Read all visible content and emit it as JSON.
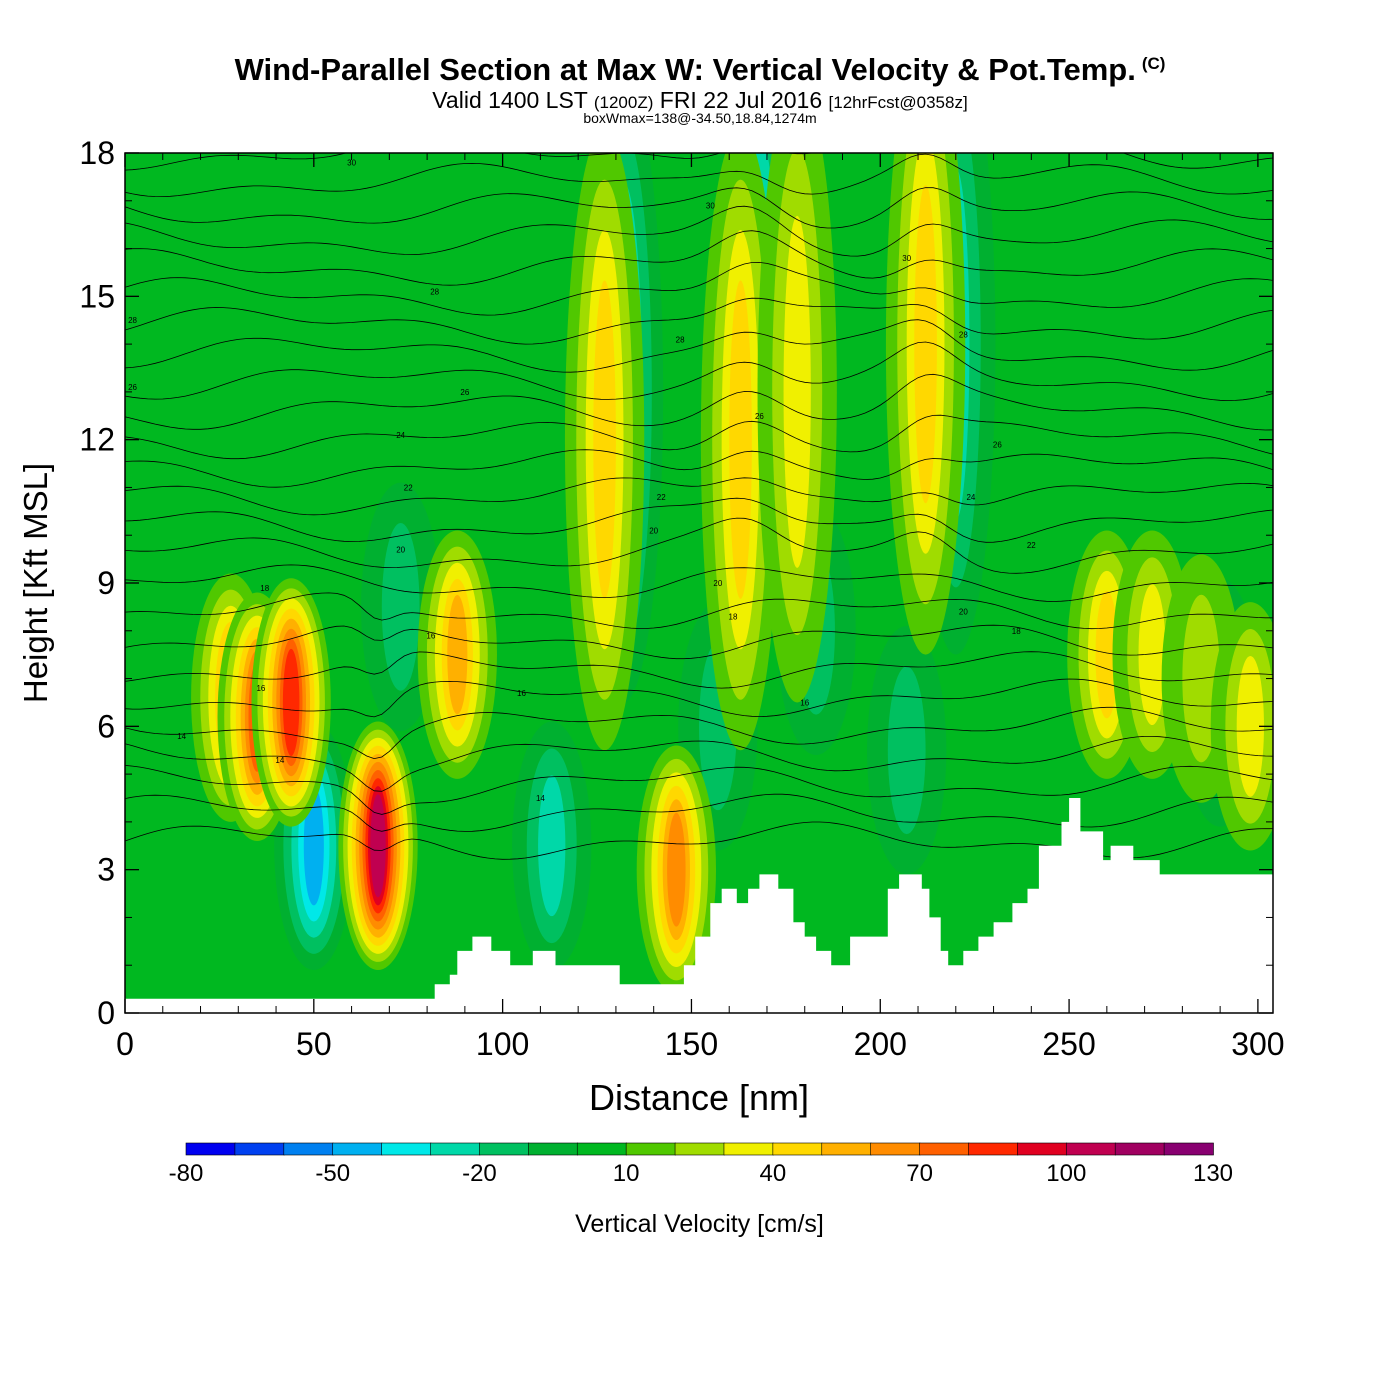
{
  "title": {
    "main": "Wind-Parallel Section at Max W: Vertical Velocity & Pot.Temp.",
    "copyright": "(C)",
    "valid_prefix": "Valid 1400 LST",
    "valid_z": "(1200Z)",
    "valid_date": "FRI 22 Jul 2016",
    "forecast": "[12hrFcst@0358z]",
    "box": "boxWmax=138@-34.50,18.84,1274m"
  },
  "chart_data": {
    "type": "heatmap",
    "xlabel": "Distance [nm]",
    "ylabel": "Height [Kft MSL]",
    "xlim": [
      0,
      304
    ],
    "ylim": [
      0,
      18
    ],
    "xticks": [
      "0",
      "50",
      "100",
      "150",
      "200",
      "250",
      "300"
    ],
    "yticks": [
      "0",
      "3",
      "6",
      "9",
      "12",
      "15",
      "18"
    ],
    "colorbar": {
      "label": "Vertical Velocity [cm/s]",
      "range": [
        -80,
        130
      ],
      "step": 10,
      "tick_labels": [
        "-80",
        "-50",
        "-20",
        "10",
        "40",
        "70",
        "100",
        "130"
      ],
      "colors": [
        "#0000f0",
        "#0040f0",
        "#0080f0",
        "#00b0f0",
        "#00e8e8",
        "#00d8a8",
        "#00c060",
        "#00b030",
        "#00b820",
        "#50c800",
        "#a0dc00",
        "#f0f000",
        "#ffd800",
        "#ffb000",
        "#ff8c00",
        "#ff6000",
        "#ff2800",
        "#e00020",
        "#c00050",
        "#a00060",
        "#880070"
      ]
    },
    "background_value": 5,
    "updrafts": [
      {
        "x": 28,
        "y_kft": 6.6,
        "peak_cm_s": 55
      },
      {
        "x": 35,
        "y_kft": 6.2,
        "peak_cm_s": 80
      },
      {
        "x": 44,
        "y_kft": 6.5,
        "peak_cm_s": 85
      },
      {
        "x": 67,
        "y_kft": 3.5,
        "peak_cm_s": 110
      },
      {
        "x": 88,
        "y_kft": 7.5,
        "peak_cm_s": 60
      },
      {
        "x": 146,
        "y_kft": 3.0,
        "peak_cm_s": 65
      },
      {
        "x": 127,
        "y_kft": 12,
        "peak_cm_s": 45
      },
      {
        "x": 163,
        "y_kft": 12,
        "peak_cm_s": 45
      },
      {
        "x": 178,
        "y_kft": 13,
        "peak_cm_s": 35
      },
      {
        "x": 212,
        "y_kft": 14,
        "peak_cm_s": 45
      },
      {
        "x": 260,
        "y_kft": 7.5,
        "peak_cm_s": 45
      },
      {
        "x": 272,
        "y_kft": 7.5,
        "peak_cm_s": 40
      },
      {
        "x": 285,
        "y_kft": 7,
        "peak_cm_s": 25
      },
      {
        "x": 298,
        "y_kft": 6,
        "peak_cm_s": 35
      }
    ],
    "downdrafts": [
      {
        "x": 50,
        "y_kft": 3.5,
        "peak_cm_s": -45
      },
      {
        "x": 73,
        "y_kft": 8.5,
        "peak_cm_s": -20
      },
      {
        "x": 113,
        "y_kft": 3.5,
        "peak_cm_s": -25
      },
      {
        "x": 132,
        "y_kft": 13,
        "peak_cm_s": -35
      },
      {
        "x": 168,
        "y_kft": 14,
        "peak_cm_s": -35
      },
      {
        "x": 207,
        "y_kft": 5.5,
        "peak_cm_s": -20
      },
      {
        "x": 220,
        "y_kft": 14,
        "peak_cm_s": -25
      },
      {
        "x": 157,
        "y_kft": 6,
        "peak_cm_s": -15
      },
      {
        "x": 183,
        "y_kft": 8,
        "peak_cm_s": -15
      },
      {
        "x": 290,
        "y_kft": 6.5,
        "peak_cm_s": -15
      }
    ],
    "terrain": {
      "x": [
        0,
        82,
        82,
        86,
        86,
        88,
        88,
        92,
        92,
        97,
        97,
        102,
        102,
        108,
        108,
        114,
        114,
        131,
        131,
        148,
        148,
        151,
        151,
        155,
        155,
        158,
        158,
        162,
        162,
        165,
        165,
        168,
        168,
        173,
        173,
        177,
        177,
        180,
        180,
        183,
        183,
        187,
        187,
        192,
        192,
        202,
        202,
        205,
        205,
        211,
        211,
        213,
        213,
        216,
        216,
        218,
        218,
        222,
        222,
        226,
        226,
        230,
        230,
        235,
        235,
        239,
        239,
        242,
        242,
        248,
        248,
        250,
        250,
        253,
        253,
        259,
        259,
        261,
        261,
        267,
        267,
        274,
        274,
        276,
        276,
        304
      ],
      "h_kft": [
        0.3,
        0.3,
        0.6,
        0.6,
        0.8,
        0.8,
        1.3,
        1.3,
        1.6,
        1.6,
        1.3,
        1.3,
        1.0,
        1.0,
        1.3,
        1.3,
        1.0,
        1.0,
        0.6,
        0.6,
        1.0,
        1.0,
        1.6,
        1.6,
        2.3,
        2.3,
        2.6,
        2.6,
        2.3,
        2.3,
        2.6,
        2.6,
        2.9,
        2.9,
        2.6,
        2.6,
        1.9,
        1.9,
        1.6,
        1.6,
        1.3,
        1.3,
        1.0,
        1.0,
        1.6,
        1.6,
        2.6,
        2.6,
        2.9,
        2.9,
        2.6,
        2.6,
        2.0,
        2.0,
        1.3,
        1.3,
        1.0,
        1.0,
        1.3,
        1.3,
        1.6,
        1.6,
        1.9,
        1.9,
        2.3,
        2.3,
        2.6,
        2.6,
        3.5,
        3.5,
        4.0,
        4.0,
        4.5,
        4.5,
        3.8,
        3.8,
        3.2,
        3.2,
        3.5,
        3.5,
        3.2,
        3.2,
        2.9,
        2.9,
        2.9,
        2.9
      ]
    },
    "isentrope_labels": [
      {
        "x": 15,
        "y_kft": 5.8,
        "label": "14"
      },
      {
        "x": 36,
        "y_kft": 6.8,
        "label": "16"
      },
      {
        "x": 37,
        "y_kft": 8.9,
        "label": "18"
      },
      {
        "x": 41,
        "y_kft": 5.3,
        "label": "14"
      },
      {
        "x": 81,
        "y_kft": 7.9,
        "label": "16"
      },
      {
        "x": 73,
        "y_kft": 9.7,
        "label": "20"
      },
      {
        "x": 75,
        "y_kft": 11.0,
        "label": "22"
      },
      {
        "x": 73,
        "y_kft": 12.1,
        "label": "24"
      },
      {
        "x": 90,
        "y_kft": 13.0,
        "label": "26"
      },
      {
        "x": 82,
        "y_kft": 15.1,
        "label": "28"
      },
      {
        "x": 2,
        "y_kft": 14.5,
        "label": "28"
      },
      {
        "x": 2,
        "y_kft": 13.1,
        "label": "26"
      },
      {
        "x": 60,
        "y_kft": 17.8,
        "label": "30"
      },
      {
        "x": 105,
        "y_kft": 6.7,
        "label": "16"
      },
      {
        "x": 110,
        "y_kft": 4.5,
        "label": "14"
      },
      {
        "x": 142,
        "y_kft": 10.8,
        "label": "22"
      },
      {
        "x": 140,
        "y_kft": 10.1,
        "label": "20"
      },
      {
        "x": 147,
        "y_kft": 14.1,
        "label": "28"
      },
      {
        "x": 155,
        "y_kft": 16.9,
        "label": "30"
      },
      {
        "x": 157,
        "y_kft": 9.0,
        "label": "20"
      },
      {
        "x": 161,
        "y_kft": 8.3,
        "label": "18"
      },
      {
        "x": 168,
        "y_kft": 12.5,
        "label": "26"
      },
      {
        "x": 180,
        "y_kft": 6.5,
        "label": "16"
      },
      {
        "x": 207,
        "y_kft": 15.8,
        "label": "30"
      },
      {
        "x": 222,
        "y_kft": 14.2,
        "label": "28"
      },
      {
        "x": 231,
        "y_kft": 11.9,
        "label": "26"
      },
      {
        "x": 224,
        "y_kft": 10.8,
        "label": "24"
      },
      {
        "x": 240,
        "y_kft": 9.8,
        "label": "22"
      },
      {
        "x": 222,
        "y_kft": 8.4,
        "label": "20"
      },
      {
        "x": 236,
        "y_kft": 8.0,
        "label": "18"
      }
    ]
  }
}
